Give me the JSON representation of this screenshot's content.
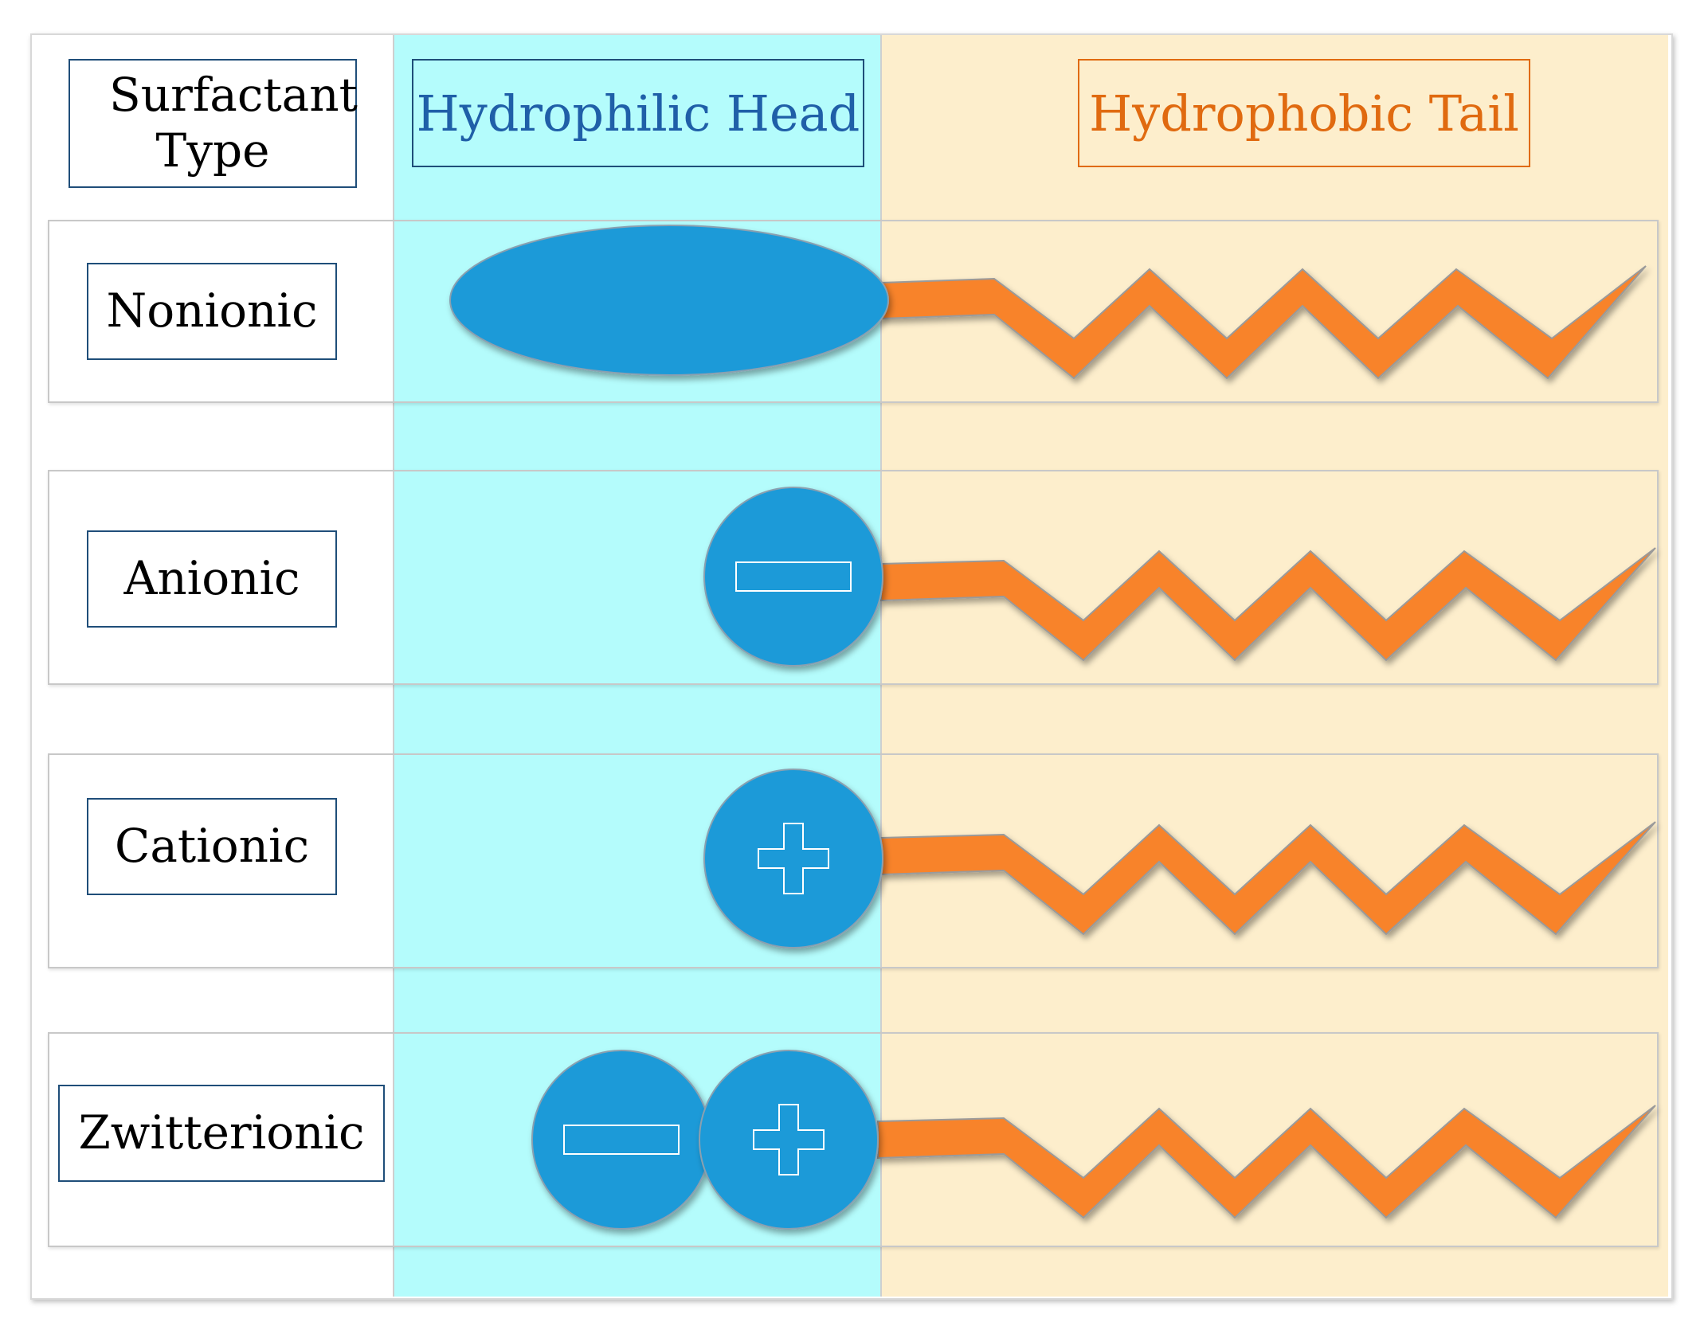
{
  "header": {
    "type_label": "Surfactant Type",
    "head_label": "Hydrophilic Head",
    "tail_label": "Hydrophobic Tail"
  },
  "rows": [
    {
      "label": "Nonionic",
      "head": "neutral"
    },
    {
      "label": "Anionic",
      "head": "negative"
    },
    {
      "label": "Cationic",
      "head": "positive"
    },
    {
      "label": "Zwitterionic",
      "head": "negative-positive"
    }
  ],
  "colors": {
    "head_fill": "#1e9ad8",
    "tail_fill": "#f8832a",
    "head_band": "#b4fcfc",
    "tail_band": "#fdeecc",
    "header_head_text": "#1f5fa8",
    "header_tail_text": "#e06a10"
  }
}
